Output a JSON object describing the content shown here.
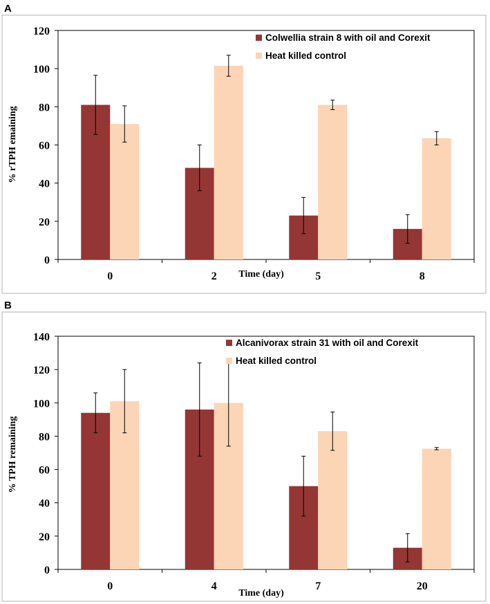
{
  "panels": [
    {
      "letter": "A",
      "chart_data": {
        "type": "bar",
        "categories": [
          "0",
          "2",
          "5",
          "8"
        ],
        "series": [
          {
            "name": "Colwellia strain 8 with oil and Corexit",
            "color": "#943634",
            "values": [
              81,
              48,
              23,
              16
            ],
            "errors": [
              15.5,
              12,
              9.5,
              7.5
            ]
          },
          {
            "name": "Heat killed control",
            "color": "#fbd5b5",
            "values": [
              71,
              101.5,
              81,
              63.5
            ],
            "errors": [
              9.5,
              5.5,
              2.5,
              3.5
            ]
          }
        ],
        "title": "",
        "xlabel": "Time (day)",
        "ylabel": "% rTPH emaining",
        "ylim": [
          0,
          120
        ],
        "yticks": [
          0,
          20,
          40,
          60,
          80,
          100,
          120
        ],
        "legend": "top-right"
      }
    },
    {
      "letter": "B",
      "chart_data": {
        "type": "bar",
        "categories": [
          "0",
          "4",
          "7",
          "20"
        ],
        "series": [
          {
            "name": "Alcanivorax strain 31 with oil and Corexit",
            "color": "#943634",
            "values": [
              94,
              96,
              50,
              13
            ],
            "errors": [
              12,
              28,
              18,
              8.5
            ]
          },
          {
            "name": "Heat killed control",
            "color": "#fbd5b5",
            "values": [
              101,
              100,
              83,
              72.5
            ],
            "errors": [
              19,
              26,
              11.5,
              0.7
            ]
          }
        ],
        "title": "",
        "xlabel": "Time (day)",
        "ylabel": "% TPH remaining",
        "ylim": [
          0,
          140
        ],
        "yticks": [
          0,
          20,
          40,
          60,
          80,
          100,
          120,
          140
        ],
        "legend": "top-right"
      }
    }
  ]
}
